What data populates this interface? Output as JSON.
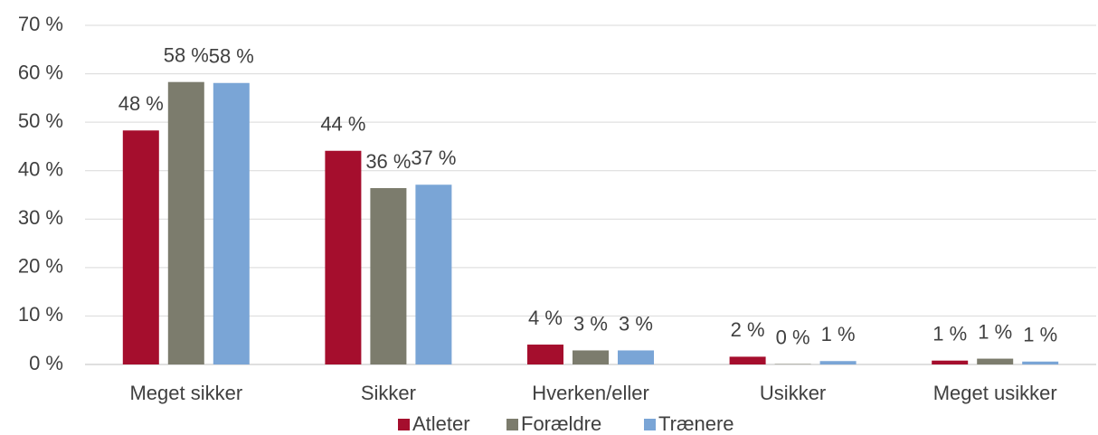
{
  "chart_data": {
    "type": "bar",
    "categories": [
      "Meget sikker",
      "Sikker",
      "Hverken/eller",
      "Usikker",
      "Meget usikker"
    ],
    "series": [
      {
        "name": "Atleter",
        "color": "#a50e2d",
        "values": [
          48.3,
          44.1,
          4.1,
          1.6,
          0.8
        ],
        "value_labels": [
          "48 %",
          "44 %",
          "4 %",
          "2 %",
          "1 %"
        ]
      },
      {
        "name": "Forældre",
        "color": "#7c7c6d",
        "values": [
          58.3,
          36.4,
          2.9,
          0.1,
          1.2
        ],
        "value_labels": [
          "58 %",
          "36 %",
          "3 %",
          "0 %",
          "1 %"
        ]
      },
      {
        "name": "Trænere",
        "color": "#7aa5d6",
        "values": [
          58.1,
          37.1,
          2.9,
          0.7,
          0.6
        ],
        "value_labels": [
          "58 %",
          "37 %",
          "3 %",
          "1 %",
          "1 %"
        ]
      }
    ],
    "ylim": [
      0,
      70
    ],
    "yticks": [
      {
        "value": 0,
        "label": "0 %"
      },
      {
        "value": 10,
        "label": "10 %"
      },
      {
        "value": 20,
        "label": "20 %"
      },
      {
        "value": 30,
        "label": "30 %"
      },
      {
        "value": 40,
        "label": "40 %"
      },
      {
        "value": 50,
        "label": "50 %"
      },
      {
        "value": 60,
        "label": "60 %"
      },
      {
        "value": 70,
        "label": "70 %"
      }
    ],
    "grid": true,
    "legend": "bottom"
  }
}
